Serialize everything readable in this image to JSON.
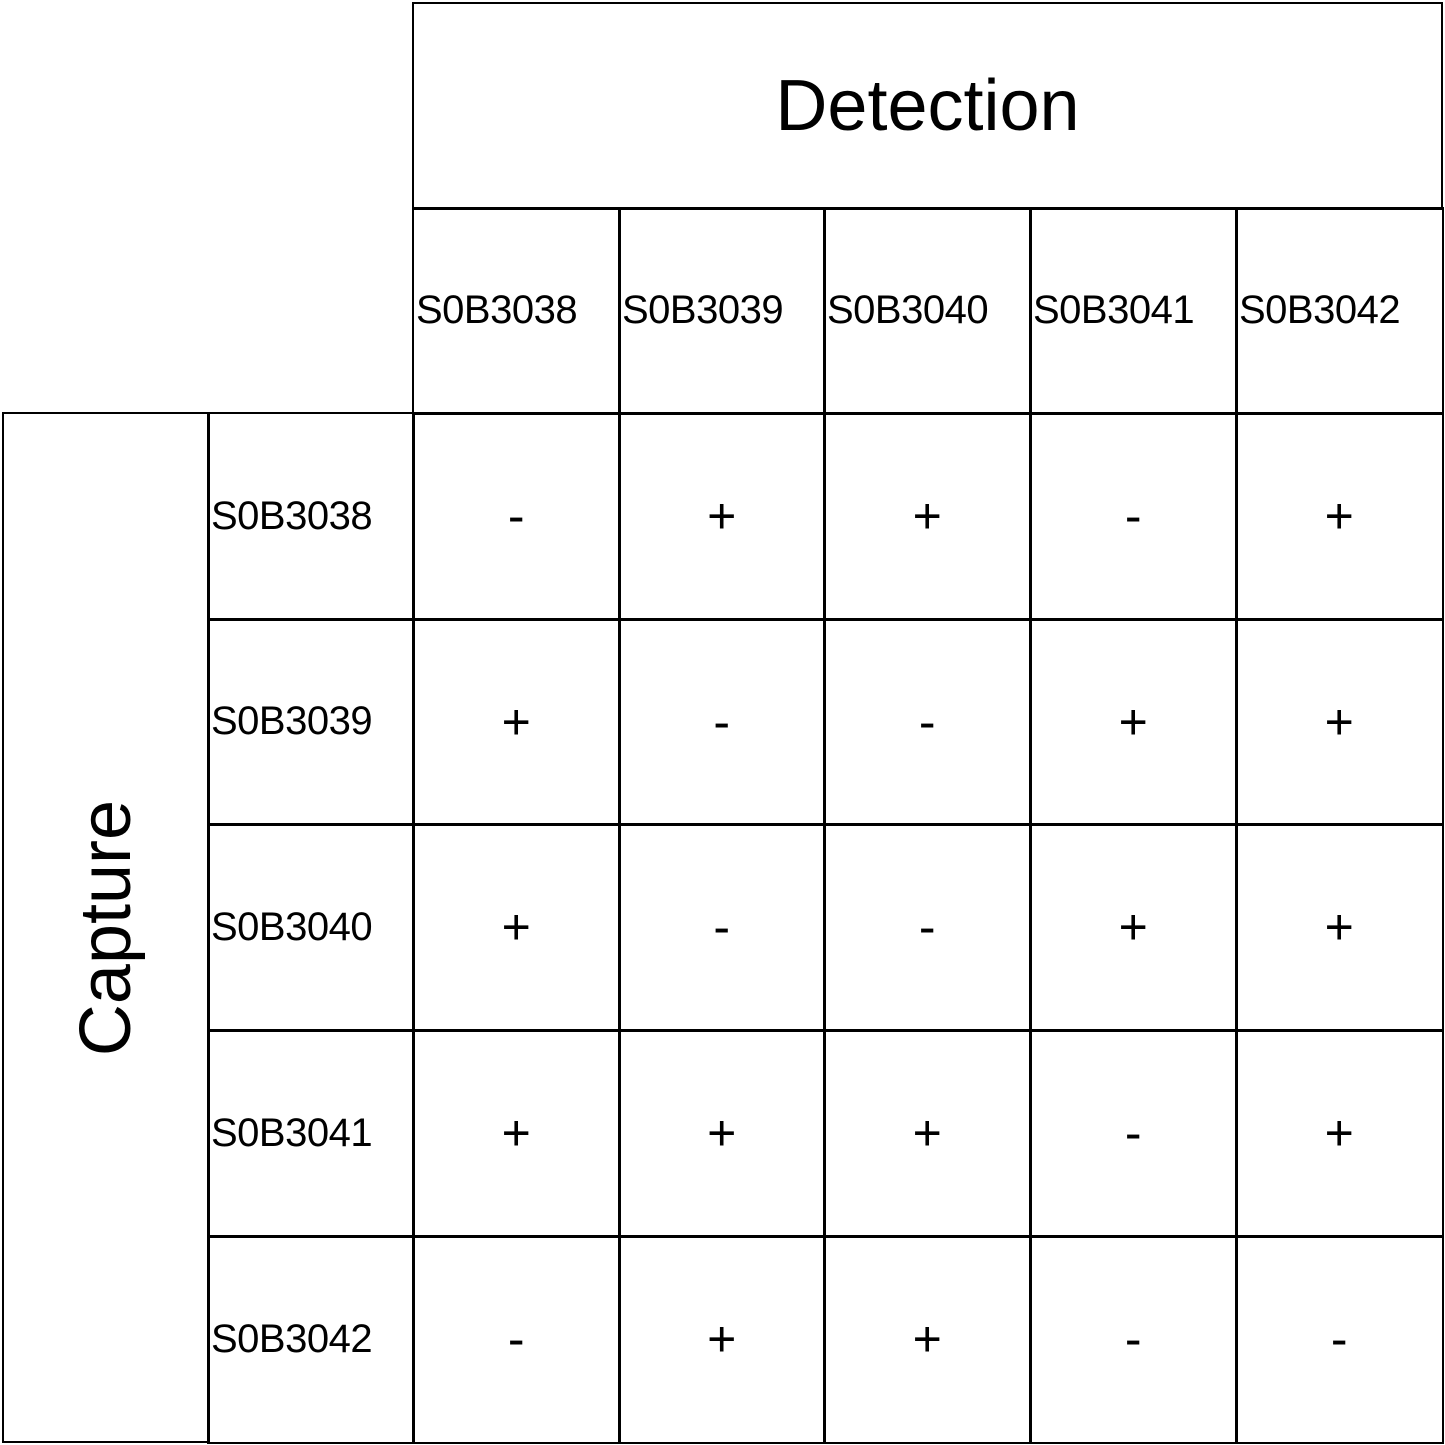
{
  "table": {
    "column_group_title": "Detection",
    "row_group_title": "Capture",
    "columns": [
      "S0B3038",
      "S0B3039",
      "S0B3040",
      "S0B3041",
      "S0B3042"
    ],
    "rows": [
      {
        "label": "S0B3038",
        "values": [
          "-",
          "+",
          "+",
          "-",
          "+"
        ]
      },
      {
        "label": "S0B3039",
        "values": [
          "+",
          "-",
          "-",
          "+",
          "+"
        ]
      },
      {
        "label": "S0B3040",
        "values": [
          "+",
          "-",
          "-",
          "+",
          "+"
        ]
      },
      {
        "label": "S0B3041",
        "values": [
          "+",
          "+",
          "+",
          "-",
          "+"
        ]
      },
      {
        "label": "S0B3042",
        "values": [
          "-",
          "+",
          "+",
          "-",
          "-"
        ]
      }
    ]
  }
}
